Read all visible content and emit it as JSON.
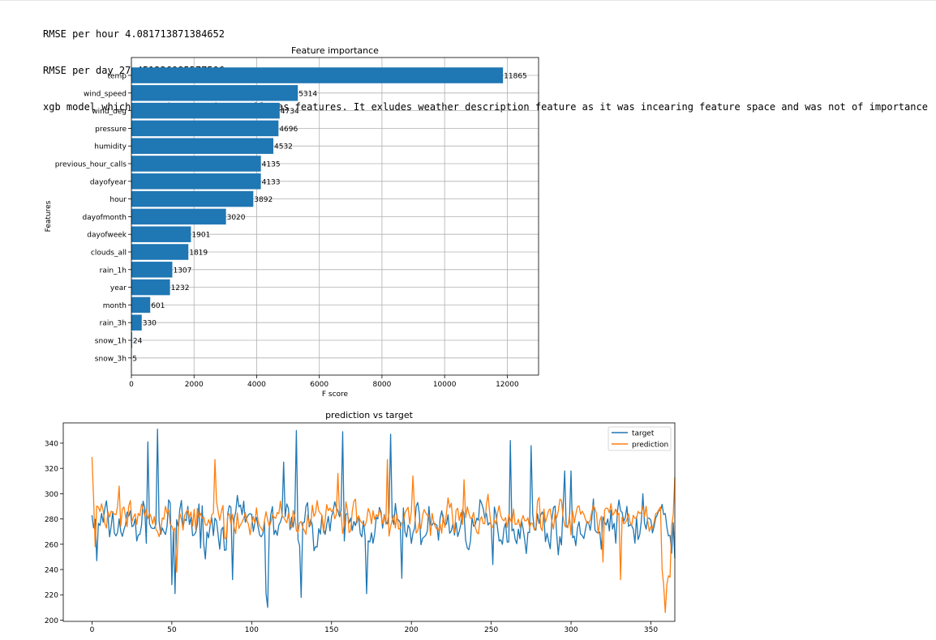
{
  "output_lines": [
    "RMSE per hour 4.081713871384652",
    "RMSE per day 27.451226985577506",
    "xgb model which contains previous_calls as features. It exludes weather description feature as it was incearing feature space and was not of importance"
  ],
  "chart_data": [
    {
      "type": "bar",
      "orientation": "horizontal",
      "title": "Feature importance",
      "xlabel": "F score",
      "ylabel": "Features",
      "xlim": [
        0,
        13000
      ],
      "xticks": [
        0,
        2000,
        4000,
        6000,
        8000,
        10000,
        12000
      ],
      "grid": true,
      "color": "#1f77b4",
      "categories": [
        "temp",
        "wind_speed",
        "wind_deg",
        "pressure",
        "humidity",
        "previous_hour_calls",
        "dayofyear",
        "hour",
        "dayofmonth",
        "dayofweek",
        "clouds_all",
        "rain_1h",
        "year",
        "month",
        "rain_3h",
        "snow_1h",
        "snow_3h"
      ],
      "values": [
        11865,
        5314,
        4734,
        4696,
        4532,
        4135,
        4133,
        3892,
        3020,
        1901,
        1819,
        1307,
        1232,
        601,
        330,
        24,
        5
      ]
    },
    {
      "type": "line",
      "title": "prediction vs target",
      "xlabel": "",
      "ylabel": "",
      "xlim": [
        -18,
        365
      ],
      "ylim": [
        199,
        356
      ],
      "xticks": [
        0,
        50,
        100,
        150,
        200,
        250,
        300,
        350
      ],
      "yticks": [
        200,
        220,
        240,
        260,
        280,
        300,
        320,
        340
      ],
      "grid": false,
      "legend": "top-right",
      "series": [
        {
          "name": "target",
          "color": "#1f77b4",
          "n": 366,
          "seed": 7,
          "base": 275,
          "spread": 22,
          "anchors": [
            [
              0,
              283
            ],
            [
              3,
              247
            ],
            [
              35,
              341
            ],
            [
              41,
              351
            ],
            [
              50,
              228
            ],
            [
              52,
              221
            ],
            [
              60,
              290
            ],
            [
              68,
              257
            ],
            [
              88,
              232
            ],
            [
              93,
              291
            ],
            [
              109,
              221
            ],
            [
              110,
              210
            ],
            [
              120,
              325
            ],
            [
              128,
              350
            ],
            [
              131,
              218
            ],
            [
              157,
              349
            ],
            [
              172,
              221
            ],
            [
              187,
              347
            ],
            [
              194,
              233
            ],
            [
              251,
              244
            ],
            [
              262,
              342
            ],
            [
              275,
              338
            ],
            [
              296,
              318
            ],
            [
              300,
              318
            ],
            [
              306,
              268
            ],
            [
              335,
              290
            ],
            [
              345,
              300
            ],
            [
              365,
              249
            ]
          ]
        },
        {
          "name": "prediction",
          "color": "#ff7f0e",
          "n": 366,
          "seed": 13,
          "base": 280,
          "spread": 17,
          "anchors": [
            [
              0,
              329
            ],
            [
              2,
              258
            ],
            [
              17,
              306
            ],
            [
              53,
              238
            ],
            [
              77,
              327
            ],
            [
              154,
              316
            ],
            [
              185,
              327
            ],
            [
              201,
              314
            ],
            [
              233,
              311
            ],
            [
              320,
              246
            ],
            [
              331,
              232
            ],
            [
              357,
              240
            ],
            [
              358,
              228
            ],
            [
              359,
              206
            ],
            [
              360,
              228
            ],
            [
              361,
              235
            ],
            [
              362,
              234
            ],
            [
              365,
              313
            ]
          ]
        }
      ]
    }
  ]
}
